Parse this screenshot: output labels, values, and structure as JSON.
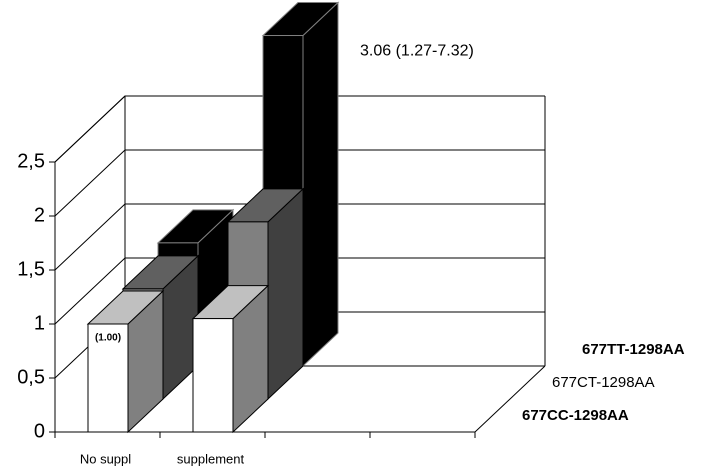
{
  "chart_data": {
    "type": "bar3d",
    "categories": [
      "No suppl",
      "supplement",
      null,
      null
    ],
    "series": [
      {
        "name": "677CC-1298AA",
        "color": "#ffffff",
        "values": [
          1.0,
          1.05,
          null,
          null
        ],
        "value_labels": [
          "(1.00)",
          null,
          null,
          null
        ]
      },
      {
        "name": "677CT-1298AA",
        "color": "#808080",
        "values": [
          1.02,
          1.64,
          null,
          null
        ]
      },
      {
        "name": "677TT-1298AA",
        "color": "#000000",
        "values": [
          1.14,
          3.06,
          null,
          null
        ],
        "value_labels": [
          null,
          "3.06 (1.27-7.32)",
          null,
          null
        ]
      }
    ],
    "ylim": [
      0,
      2.5
    ],
    "yticks": [
      0,
      {
        "value": 0.5,
        "label": "0,5"
      },
      1,
      {
        "value": 1.5,
        "label": "1,5"
      },
      2,
      {
        "value": 2.5,
        "label": "2,5"
      }
    ],
    "grid": true
  }
}
